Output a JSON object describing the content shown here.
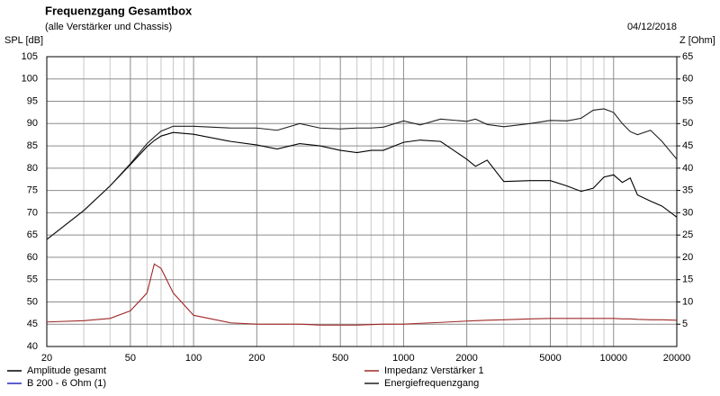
{
  "chart_data": {
    "type": "line",
    "title": "Frequenzgang Gesamtbox",
    "subtitle": "(alle Verstärker und Chassis)",
    "date": "04/12/2018",
    "ylabel": "SPL [dB]",
    "y2label": "Z [Ohm]",
    "xscale": "log",
    "grid": true,
    "x": [
      20,
      30,
      40,
      50,
      60,
      65,
      70,
      80,
      100,
      150,
      200,
      250,
      320,
      400,
      500,
      600,
      700,
      800,
      1000,
      1200,
      1500,
      2000,
      2200,
      2500,
      3000,
      4000,
      5000,
      6000,
      7000,
      8000,
      9000,
      10000,
      11000,
      12000,
      13000,
      15000,
      17000,
      20000
    ],
    "xlim": [
      20,
      20000
    ],
    "xticks": [
      20,
      50,
      100,
      200,
      500,
      1000,
      2000,
      5000,
      10000,
      20000
    ],
    "xminor": [
      30,
      40,
      60,
      70,
      80,
      90,
      300,
      400,
      600,
      700,
      800,
      900,
      3000,
      4000,
      6000,
      7000,
      8000,
      9000
    ],
    "ylim": [
      40,
      105
    ],
    "yticks": [
      40,
      45,
      50,
      55,
      60,
      65,
      70,
      75,
      80,
      85,
      90,
      95,
      100,
      105
    ],
    "y2lim": [
      0,
      65
    ],
    "y2ticks": [
      5,
      10,
      15,
      20,
      25,
      30,
      35,
      40,
      45,
      50,
      55,
      60,
      65
    ],
    "series": [
      {
        "name": "Amplitude gesamt",
        "color": "#000000",
        "values": [
          64,
          70.5,
          76,
          80.8,
          84.8,
          86.2,
          87.2,
          88,
          87.6,
          86,
          85.2,
          84.3,
          85.5,
          85,
          84,
          83.5,
          84,
          84,
          85.8,
          86.3,
          86,
          82,
          80.4,
          81.8,
          77,
          77.2,
          77.2,
          76,
          74.8,
          75.5,
          78,
          78.5,
          76.8,
          77.8,
          74,
          72.6,
          71.5,
          69
        ]
      },
      {
        "name": "Impedanz Verstärker 1",
        "color": "#a02828",
        "axis": "y2",
        "values": [
          5.5,
          5.8,
          6.3,
          8,
          12,
          18.5,
          17.5,
          12,
          7,
          5.3,
          5,
          5,
          5,
          4.8,
          4.8,
          4.8,
          4.9,
          5,
          5,
          5.2,
          5.4,
          5.7,
          5.8,
          5.9,
          6,
          6.2,
          6.3,
          6.3,
          6.3,
          6.3,
          6.3,
          6.3,
          6.2,
          6.2,
          6.1,
          6,
          6,
          5.9
        ]
      },
      {
        "name": "B 200 - 6 Ohm (1)",
        "color": "#2828c0",
        "values": [
          null,
          null,
          null,
          null,
          null,
          null,
          null,
          null,
          null,
          null,
          null,
          null,
          null,
          null,
          null,
          null,
          null,
          null,
          null,
          null,
          null,
          null,
          null,
          null,
          null,
          null,
          null,
          null,
          null,
          null,
          null,
          null,
          null,
          null,
          null,
          null,
          null,
          null
        ]
      },
      {
        "name": "Energiefrequenzgang",
        "color": "#202020",
        "values": [
          64,
          70.5,
          76,
          81,
          85.5,
          87,
          88.3,
          89.4,
          89.4,
          89,
          89,
          88.5,
          90,
          89,
          88.8,
          89,
          89,
          89.2,
          90.6,
          89.7,
          91,
          90.5,
          91,
          89.8,
          89.3,
          90,
          90.7,
          90.6,
          91.2,
          93,
          93.3,
          92.5,
          90,
          88.2,
          87.5,
          88.5,
          86,
          82
        ]
      }
    ]
  }
}
